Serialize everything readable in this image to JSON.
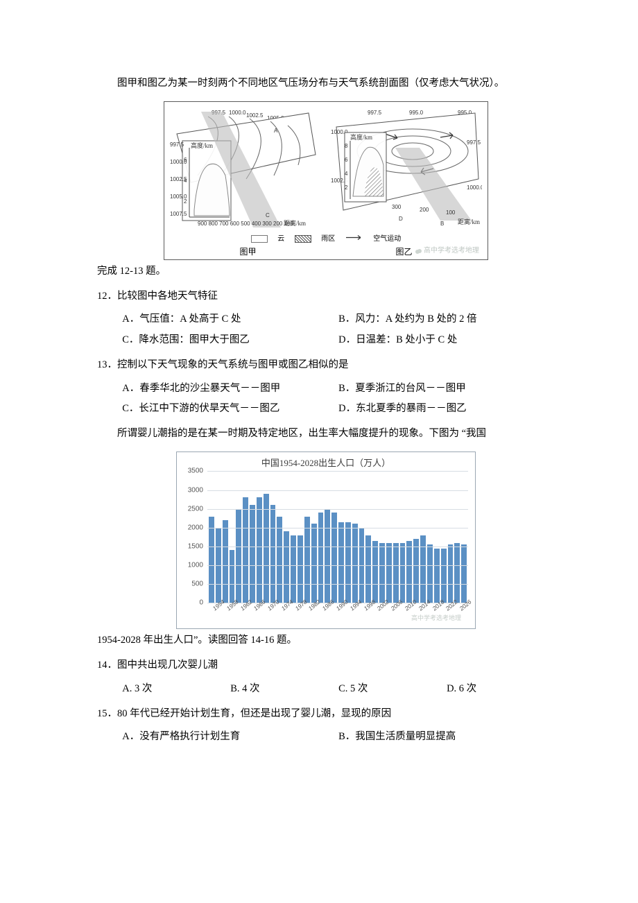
{
  "intro1": "图甲和图乙为某一时刻两个不同地区气压场分布与天气系统剖面图（仅考虑大气状况）。",
  "intro1b": "完成 12-13 题。",
  "diagram": {
    "panelA": {
      "iso_top": [
        "997.5",
        "1000.0",
        "1002.5",
        "1005.0",
        "1007.5"
      ],
      "iso_left": [
        "997.5",
        "1000.0",
        "1002.5",
        "1005.0",
        "1007.5"
      ],
      "axis_y_label": "高度/km",
      "axis_y_ticks": [
        "6",
        "4",
        "2"
      ],
      "axis_x_ticks": [
        "900",
        "800",
        "700",
        "600",
        "500",
        "400",
        "300",
        "200",
        "100"
      ],
      "axis_x_unit": "距离/km",
      "pts": [
        "A",
        "C"
      ]
    },
    "panelB": {
      "iso_top": [
        "997.5",
        "995.0",
        "995.0"
      ],
      "iso_left": [
        "1000.0",
        "1002.5"
      ],
      "iso_right": [
        "997.5",
        "1000.0"
      ],
      "axis_y_label": "高度/km",
      "axis_y_ticks": [
        "8",
        "6",
        "4",
        "2"
      ],
      "axis_x_ticks": [
        "300",
        "200",
        "100"
      ],
      "axis_x_unit": "距离/km",
      "pts": [
        "D",
        "B"
      ]
    },
    "legend": {
      "clouds": "云",
      "rain": "雨区",
      "air": "空气运动"
    },
    "caption_left": "图甲",
    "caption_right": "图乙",
    "watermark": "高中学考选考地理"
  },
  "q12": {
    "stem": "12．比较图中各地天气特征",
    "opts": {
      "A": "A．气压值：A 处高于 C 处",
      "B": "B．风力：A 处约为 B 处的 2 倍",
      "C": "C．降水范围：图甲大于图乙",
      "D": "D．日温差：B 处小于 C 处"
    }
  },
  "q13": {
    "stem": "13．控制以下天气现象的天气系统与图甲或图乙相似的是",
    "opts": {
      "A": "A．春季华北的沙尘暴天气－－图甲",
      "B": "B．夏季浙江的台风－－图甲",
      "C": "C．长江中下游的伏旱天气－－图乙",
      "D": "D．东北夏季的暴雨－－图乙"
    }
  },
  "intro2a": "所谓婴儿潮指的是在某一时期及特定地区，出生率大幅度提升的现象。下图为 “我国",
  "intro2b": "1954-2028 年出生人口”。读图回答 14-16 题。",
  "chart": {
    "title": "中国1954-2028出生人口（万人）",
    "bar_color": "#5b90c4",
    "grid_color": "#d7dde3",
    "border_color": "#9aa6b2",
    "background_color": "#ffffff",
    "ylim": [
      0,
      3500
    ],
    "ytick_step": 500,
    "yticks": [
      0,
      500,
      1000,
      1500,
      2000,
      2500,
      3000,
      3500
    ],
    "x_labels_visible": [
      1954,
      1958,
      1962,
      1966,
      1970,
      1974,
      1978,
      1982,
      1986,
      1990,
      1994,
      1998,
      2002,
      2006,
      2010,
      2014,
      2018,
      2022,
      2026
    ],
    "x_step": 2,
    "bars": [
      {
        "year": 1954,
        "value": 2300
      },
      {
        "year": 1956,
        "value": 2000
      },
      {
        "year": 1958,
        "value": 2200
      },
      {
        "year": 1960,
        "value": 1400
      },
      {
        "year": 1962,
        "value": 2500
      },
      {
        "year": 1964,
        "value": 2800
      },
      {
        "year": 1966,
        "value": 2600
      },
      {
        "year": 1968,
        "value": 2800
      },
      {
        "year": 1970,
        "value": 2900
      },
      {
        "year": 1972,
        "value": 2600
      },
      {
        "year": 1974,
        "value": 2300
      },
      {
        "year": 1976,
        "value": 1900
      },
      {
        "year": 1978,
        "value": 1800
      },
      {
        "year": 1980,
        "value": 1800
      },
      {
        "year": 1982,
        "value": 2300
      },
      {
        "year": 1984,
        "value": 2100
      },
      {
        "year": 1986,
        "value": 2400
      },
      {
        "year": 1988,
        "value": 2500
      },
      {
        "year": 1990,
        "value": 2400
      },
      {
        "year": 1992,
        "value": 2150
      },
      {
        "year": 1994,
        "value": 2150
      },
      {
        "year": 1996,
        "value": 2100
      },
      {
        "year": 1998,
        "value": 2000
      },
      {
        "year": 2000,
        "value": 1800
      },
      {
        "year": 2002,
        "value": 1650
      },
      {
        "year": 2004,
        "value": 1600
      },
      {
        "year": 2006,
        "value": 1600
      },
      {
        "year": 2008,
        "value": 1600
      },
      {
        "year": 2010,
        "value": 1600
      },
      {
        "year": 2012,
        "value": 1650
      },
      {
        "year": 2014,
        "value": 1700
      },
      {
        "year": 2016,
        "value": 1800
      },
      {
        "year": 2018,
        "value": 1550
      },
      {
        "year": 2020,
        "value": 1450
      },
      {
        "year": 2022,
        "value": 1450
      },
      {
        "year": 2024,
        "value": 1550
      },
      {
        "year": 2026,
        "value": 1600
      },
      {
        "year": 2028,
        "value": 1550
      }
    ],
    "watermark": "高中学考选考地理"
  },
  "q14": {
    "stem": "14．图中共出现几次婴儿潮",
    "opts": {
      "A": "A. 3 次",
      "B": "B. 4 次",
      "C": "C. 5 次",
      "D": "D. 6 次"
    }
  },
  "q15": {
    "stem": "15．80 年代已经开始计划生育，但还是出现了婴儿潮，显现的原因",
    "opts": {
      "A": "A．没有严格执行计划生育",
      "B": "B．我国生活质量明显提高"
    }
  }
}
